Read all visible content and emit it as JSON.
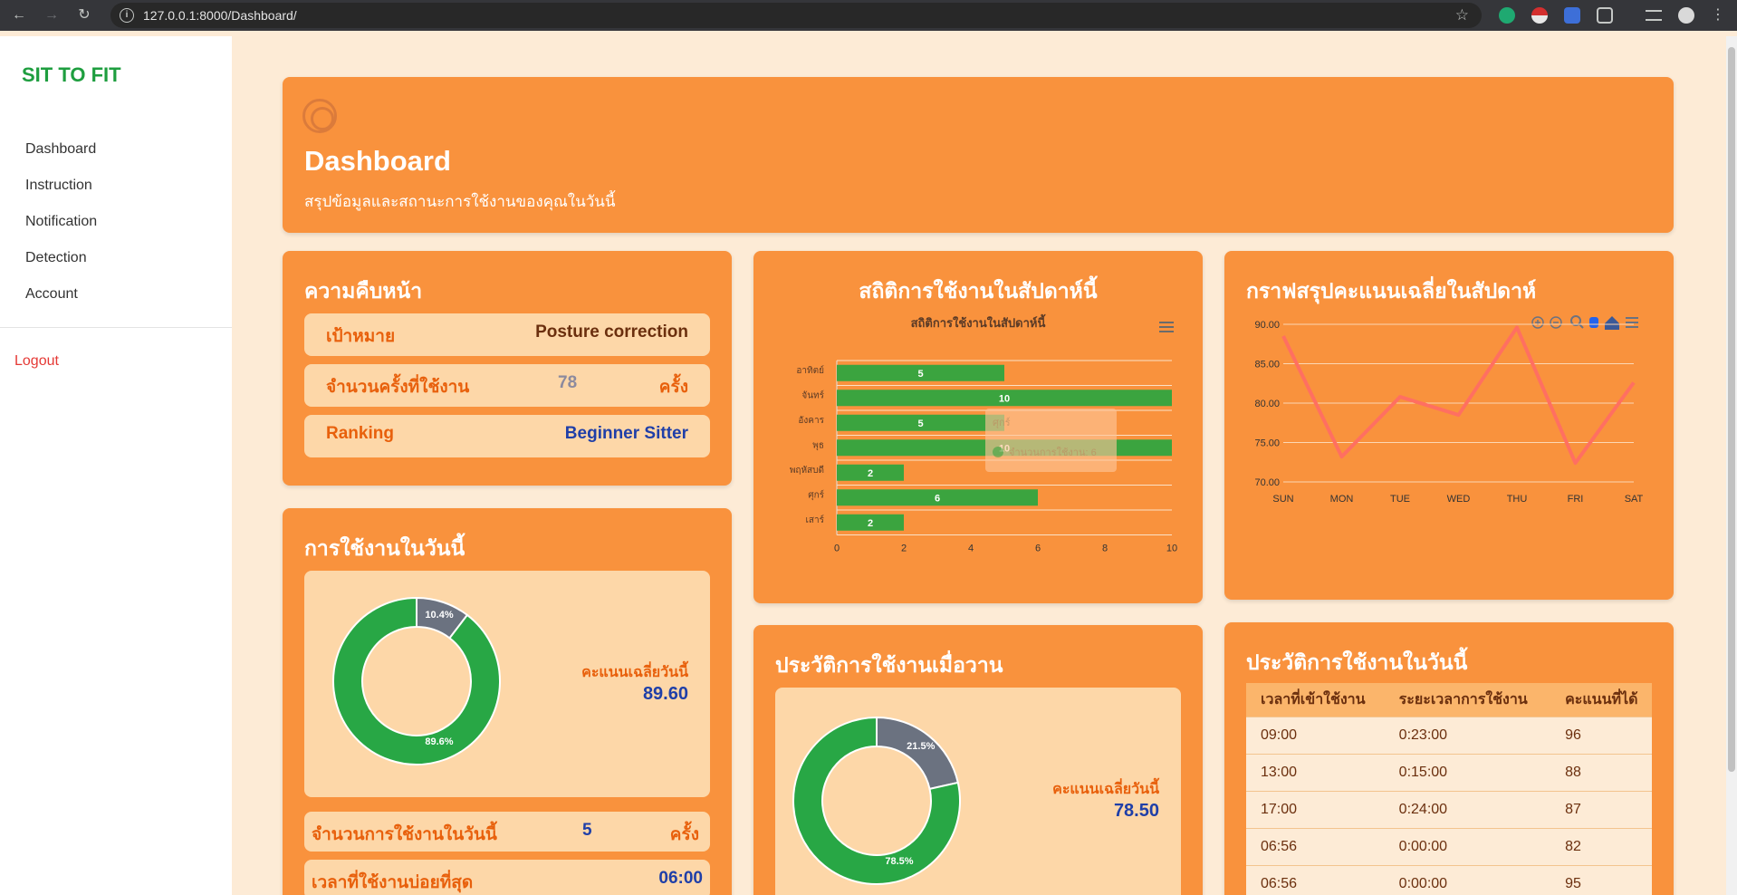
{
  "browser": {
    "url": "127.0.0.1:8000/Dashboard/"
  },
  "sidebar": {
    "brand": "SIT TO FIT",
    "items": [
      {
        "label": "Dashboard"
      },
      {
        "label": "Instruction"
      },
      {
        "label": "Notification"
      },
      {
        "label": "Detection"
      },
      {
        "label": "Account"
      }
    ],
    "logout": "Logout"
  },
  "header": {
    "title": "Dashboard",
    "subtitle": "สรุปข้อมูลและสถานะการใช้งานของคุณในวันนี้"
  },
  "progress": {
    "title": "ความคืบหน้า",
    "goal_label": "เป้าหมาย",
    "goal_value": "Posture correction",
    "count_label": "จำนวนครั้งที่ใช้งาน",
    "count_value": "78",
    "count_unit": "ครั้ง",
    "ranking_label": "Ranking",
    "ranking_value": "Beginner Sitter"
  },
  "today": {
    "title": "การใช้งานในวันนี้",
    "avg_label": "คะแนนเฉลี่ยวันนี้",
    "avg_value": "89.60",
    "donut": {
      "good_pct": 89.6,
      "bad_pct": 10.4,
      "good_label": "89.6%",
      "bad_label": "10.4%"
    },
    "usage_label": "จำนวนการใช้งานในวันนี้",
    "usage_value": "5",
    "usage_unit": "ครั้ง",
    "frequent_label": "เวลาที่ใช้งานบ่อยที่สุด",
    "frequent_value": "06:00"
  },
  "weekly_stats": {
    "title": "สถิติการใช้งานในสัปดาห์นี้",
    "tooltip_day": "ศุกร์",
    "tooltip_label": "จำนวนการใช้งาน: 6",
    "colors": {
      "bar": "#3ba43f",
      "label": "#ffffff"
    }
  },
  "weekly_score": {
    "title": "กราฟสรุปคะแนนเฉลี่ยในสัปดาห์",
    "toolbar_icons": [
      "zoom-in-icon",
      "zoom-out-icon",
      "magnifier-icon",
      "pan-hand-icon",
      "home-icon",
      "menu-icon"
    ]
  },
  "yesterday": {
    "title": "ประวัติการใช้งานเมื่อวาน",
    "avg_label": "คะแนนเฉลี่ยวันนี้",
    "avg_value": "78.50",
    "donut": {
      "good_pct": 78.5,
      "bad_pct": 21.5,
      "good_label": "78.5%",
      "bad_label": "21.5%"
    }
  },
  "history": {
    "title": "ประวัติการใช้งานในวันนี้",
    "columns": [
      "เวลาที่เข้าใช้งาน",
      "ระยะเวลาการใช้งาน",
      "คะแนนที่ได้"
    ],
    "rows": [
      [
        "09:00",
        "0:23:00",
        "96"
      ],
      [
        "13:00",
        "0:15:00",
        "88"
      ],
      [
        "17:00",
        "0:24:00",
        "87"
      ],
      [
        "06:56",
        "0:00:00",
        "82"
      ],
      [
        "06:56",
        "0:00:00",
        "95"
      ]
    ]
  },
  "chart_data": [
    {
      "type": "bar",
      "orientation": "horizontal",
      "title": "สถิติการใช้งานในสัปดาห์นี้",
      "categories": [
        "อาทิตย์",
        "จันทร์",
        "อังคาร",
        "พุธ",
        "พฤหัสบดี",
        "ศุกร์",
        "เสาร์"
      ],
      "values": [
        5,
        10,
        5,
        10,
        2,
        6,
        2
      ],
      "xlim": [
        0,
        10
      ],
      "xticks": [
        "0",
        "2",
        "4",
        "6",
        "8",
        "10"
      ],
      "grid": true
    },
    {
      "type": "line",
      "categories": [
        "SUN",
        "MON",
        "TUE",
        "WED",
        "THU",
        "FRI",
        "SAT"
      ],
      "values": [
        88.5,
        73.2,
        80.8,
        78.5,
        89.6,
        72.4,
        82.6
      ],
      "ylim": [
        70,
        90
      ],
      "yticks": [
        "90.00",
        "85.00",
        "80.00",
        "75.00",
        "70.00"
      ],
      "color": "#ff6f61",
      "grid": true
    }
  ]
}
